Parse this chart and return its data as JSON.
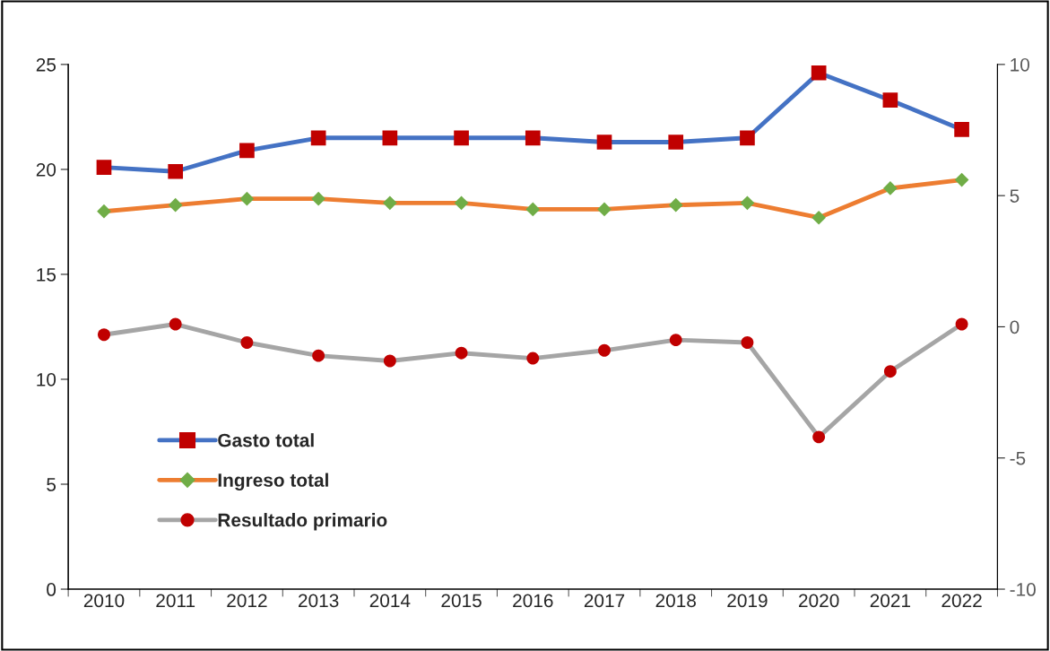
{
  "chart_data": {
    "type": "line",
    "categories": [
      "2010",
      "2011",
      "2012",
      "2013",
      "2014",
      "2015",
      "2016",
      "2017",
      "2018",
      "2019",
      "2020",
      "2021",
      "2022"
    ],
    "series": [
      {
        "name": "Gasto total",
        "color": "#4472c4",
        "marker": "square",
        "colors": [
          "#c00000",
          "#c00000",
          "#c00000",
          "#c00000",
          "#c00000",
          "#c00000",
          "#c00000",
          "#c00000",
          "#c00000",
          "#c00000",
          "#c00000",
          "#c00000",
          "#c00000"
        ],
        "values": [
          20.1,
          19.9,
          20.9,
          21.5,
          21.5,
          21.5,
          21.5,
          21.3,
          21.3,
          21.5,
          24.6,
          23.3,
          21.9
        ]
      },
      {
        "name": "Ingreso total",
        "color": "#ed7d31",
        "marker": "diamond",
        "colors": [
          "#70ad47",
          "#70ad47",
          "#70ad47",
          "#70ad47",
          "#70ad47",
          "#70ad47",
          "#70ad47",
          "#70ad47",
          "#70ad47",
          "#70ad47",
          "#70ad47",
          "#70ad47",
          "#70ad47"
        ],
        "values": [
          18.0,
          18.3,
          18.6,
          18.6,
          18.4,
          18.4,
          18.1,
          18.1,
          18.3,
          18.4,
          17.7,
          19.1,
          19.5
        ]
      },
      {
        "name": "Resultado primario",
        "color": "#a5a5a5",
        "marker": "circle",
        "colors": [
          "#c00000",
          "#c00000",
          "#c00000",
          "#c00000",
          "#c00000",
          "#c00000",
          "#c00000",
          "#c00000",
          "#c00000",
          "#c00000",
          "#c00000",
          "#c00000",
          "#c00000"
        ],
        "axis": "y2",
        "values": [
          -0.3,
          0.1,
          -0.6,
          -1.1,
          -1.3,
          -1.0,
          -1.2,
          -0.9,
          -0.5,
          -0.6,
          -4.2,
          -1.7,
          0.1
        ]
      }
    ],
    "ylim": [
      0,
      25
    ],
    "yticks": [
      0,
      5,
      10,
      15,
      20,
      25
    ],
    "y2lim": [
      -10,
      10
    ],
    "y2ticks": [
      -10,
      -5,
      0,
      5,
      10
    ],
    "grid": false,
    "legend": "bottom left",
    "line_style": "solid"
  }
}
